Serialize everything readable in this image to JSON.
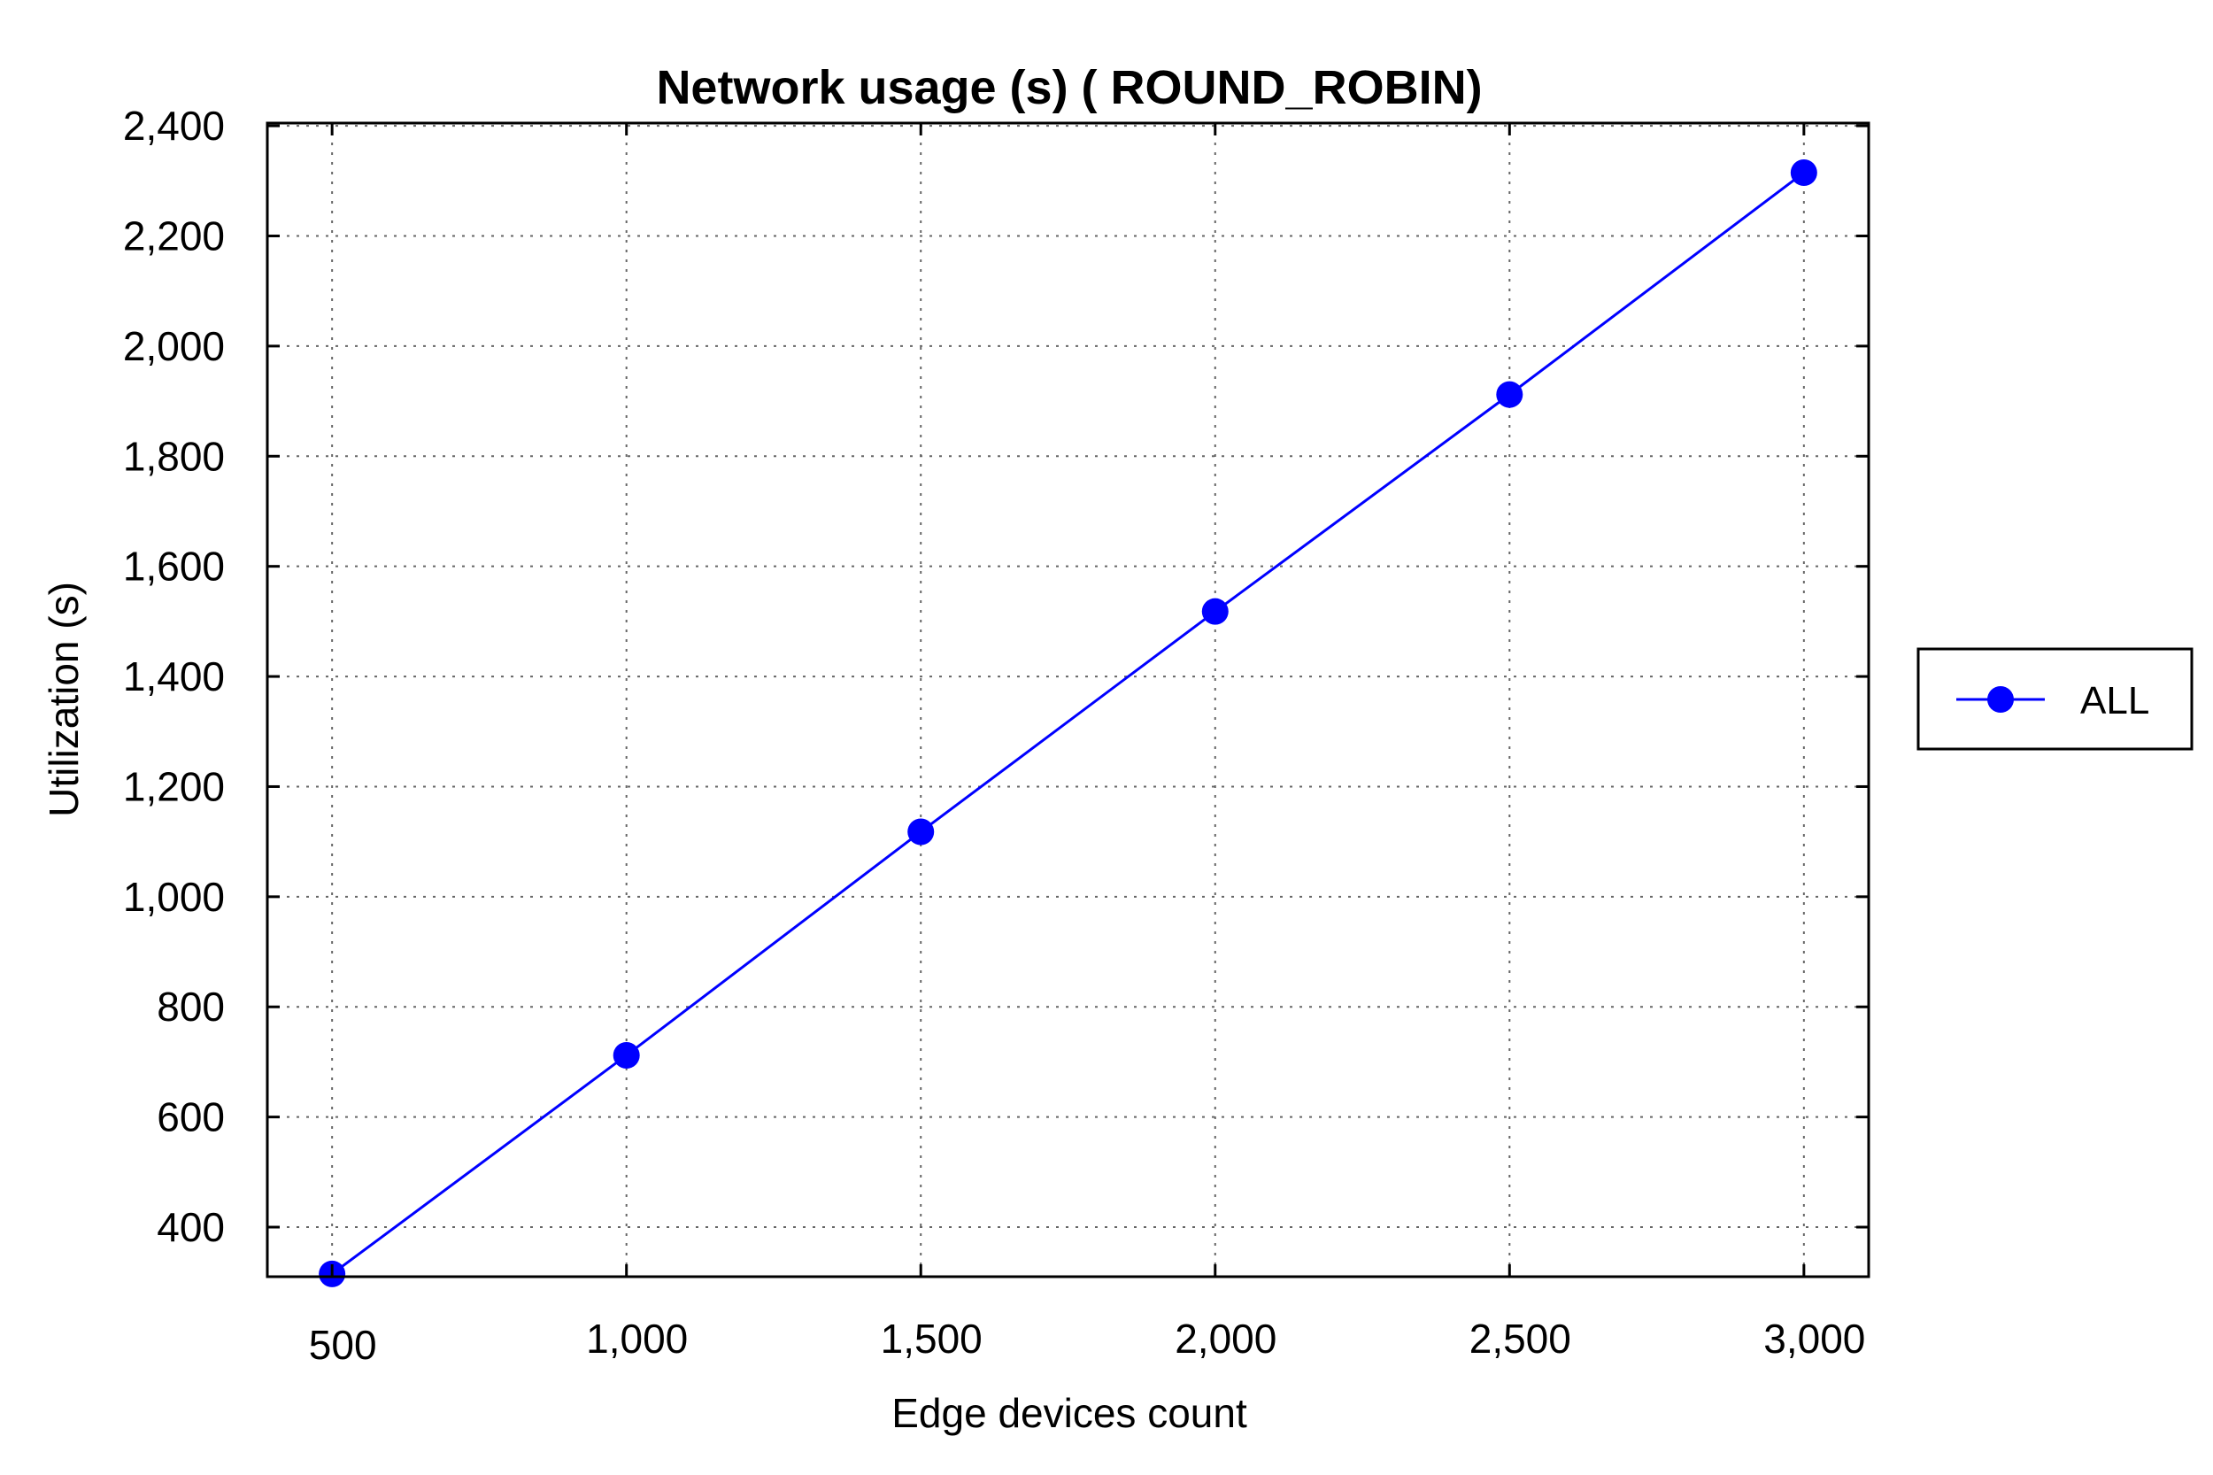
{
  "chart_data": {
    "type": "line",
    "title": "Network usage (s) ( ROUND_ROBIN)",
    "xlabel": "Edge devices count",
    "ylabel": "Utilization (s)",
    "x": [
      500,
      1000,
      1500,
      2000,
      2500,
      3000
    ],
    "x_tick_labels": [
      "500",
      "1,000",
      "1,500",
      "2,000",
      "2,500",
      "3,000"
    ],
    "y_ticks": [
      400,
      600,
      800,
      1000,
      1200,
      1400,
      1600,
      1800,
      2000,
      2200,
      2400
    ],
    "y_tick_labels": [
      "400",
      "600",
      "800",
      "1,000",
      "1,200",
      "1,400",
      "1,600",
      "1,800",
      "2,000",
      "2,200",
      "2,400"
    ],
    "xlim": [
      390,
      3110
    ],
    "ylim": [
      310,
      2405
    ],
    "grid": true,
    "legend_position": "right",
    "series": [
      {
        "name": "ALL",
        "color": "#0000ff",
        "marker": "circle",
        "values": [
          315,
          712,
          1118,
          1518,
          1912,
          2315
        ]
      }
    ]
  }
}
